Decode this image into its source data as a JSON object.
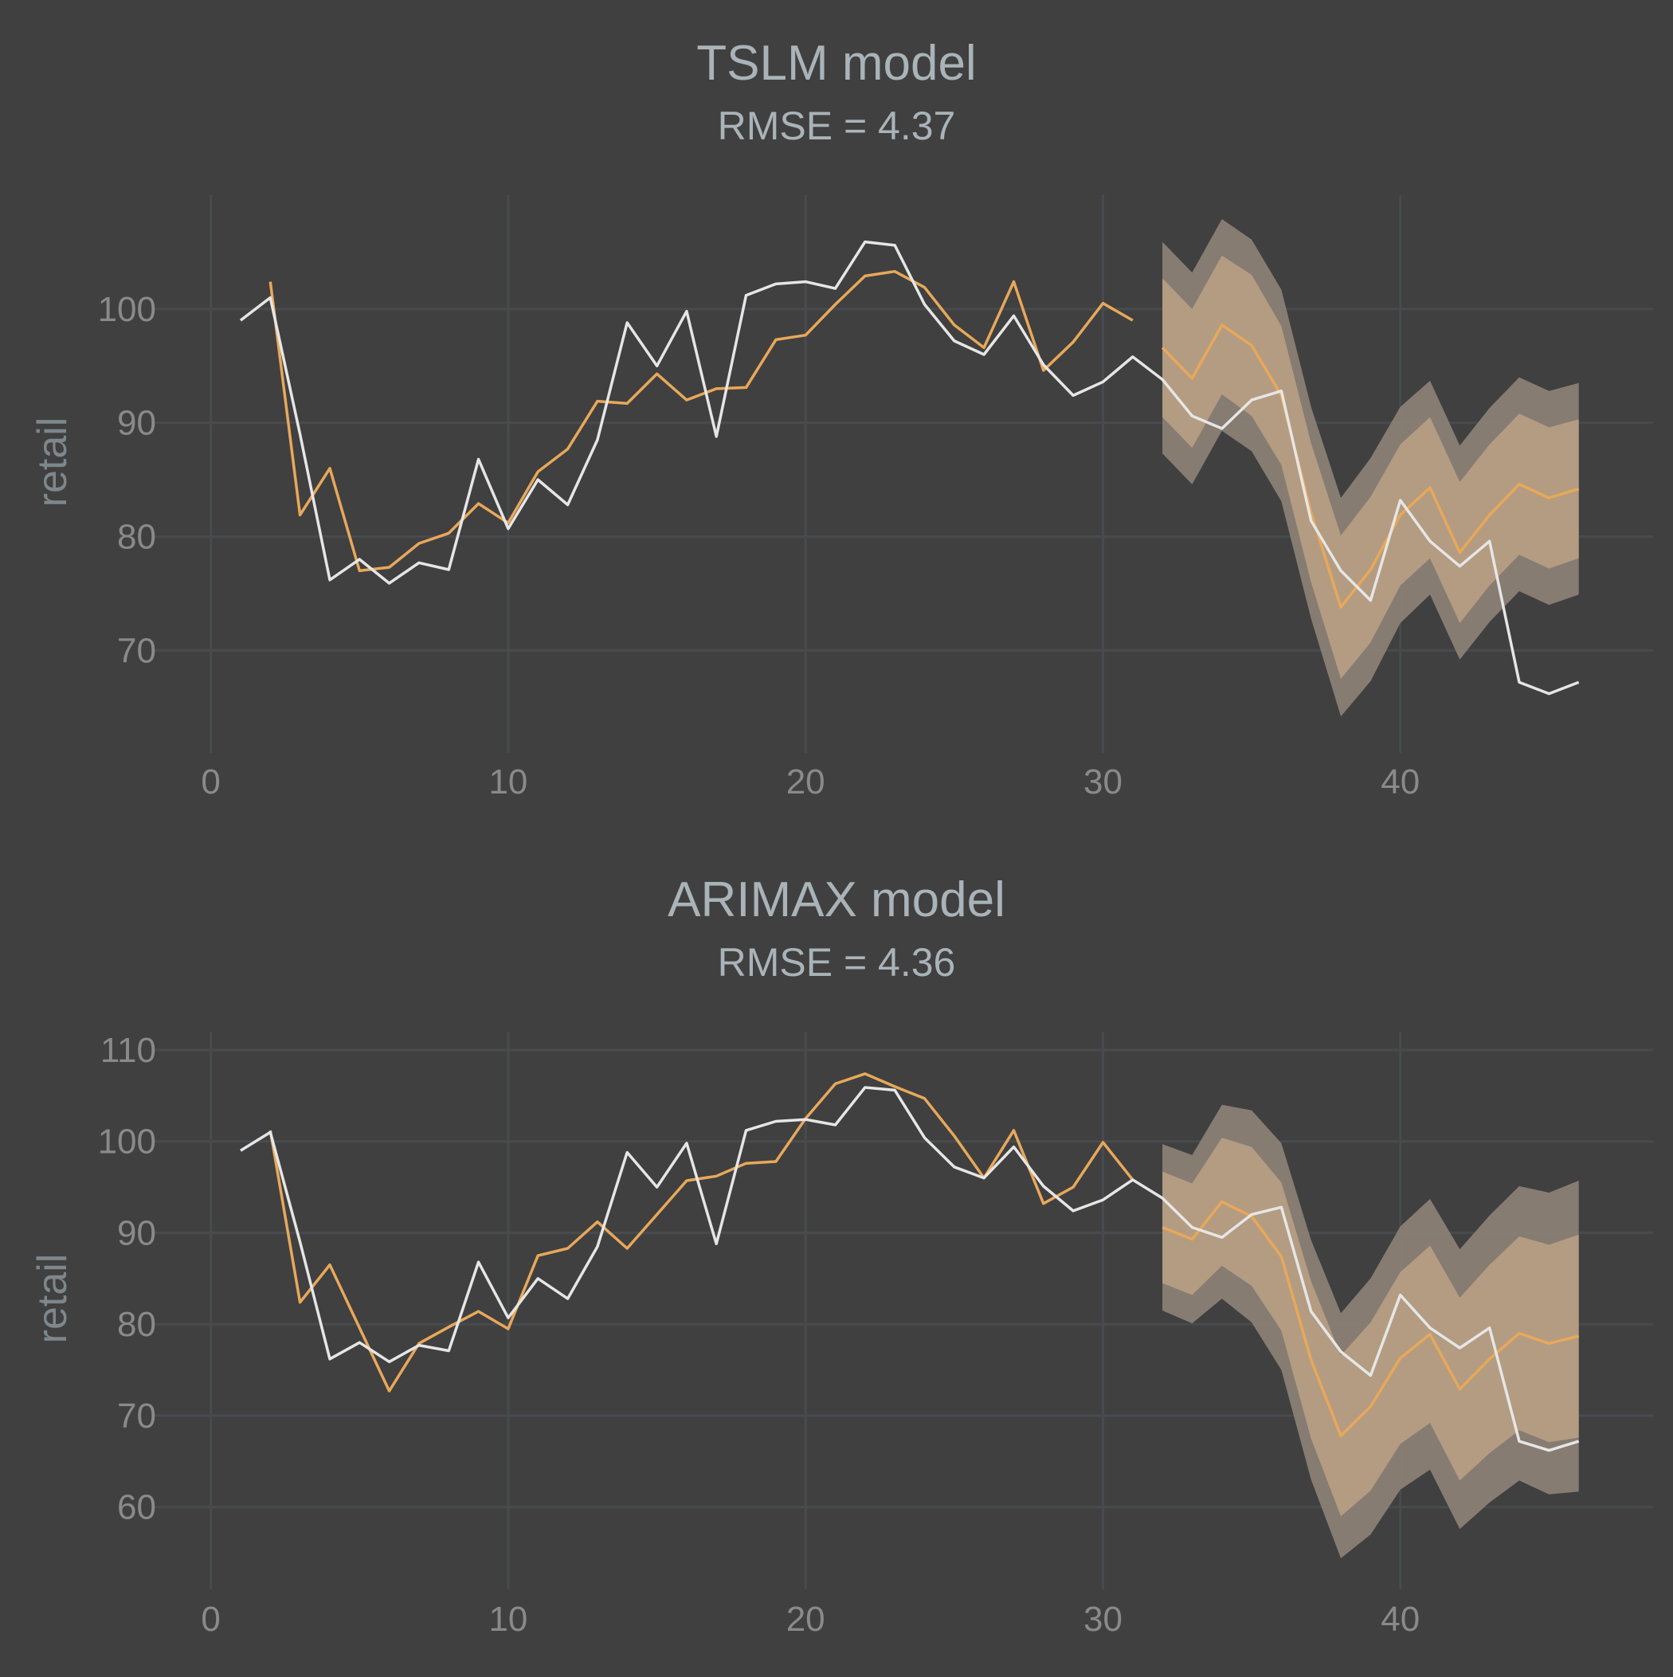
{
  "colors": {
    "background": "#404040",
    "fitted": "#e8a85a",
    "actual": "#e6e6e6",
    "band80": "#b8a084",
    "band95": "#8a8075"
  },
  "chart_data": [
    {
      "type": "line",
      "title": "TSLM model",
      "subtitle": "RMSE = 4.37",
      "xlabel": "",
      "ylabel": "retail",
      "xlim": [
        -2,
        48.5
      ],
      "ylim": [
        61,
        110
      ],
      "xticks": [
        0,
        10,
        20,
        30,
        40
      ],
      "yticks": [
        70,
        80,
        90,
        100
      ],
      "grid": true,
      "legend": "none",
      "series": [
        {
          "kind": "actual",
          "x": [
            1,
            2,
            3,
            4,
            5,
            6,
            7,
            8,
            9,
            10,
            11,
            12,
            13,
            14,
            15,
            16,
            17,
            18,
            19,
            20,
            21,
            22,
            23,
            24,
            25,
            26,
            27,
            28,
            29,
            30,
            31,
            32,
            33,
            34,
            35,
            36,
            37,
            38,
            39,
            40,
            41,
            42,
            43,
            44,
            45,
            46
          ],
          "y": [
            99.0,
            101.0,
            89.0,
            76.2,
            78.0,
            75.9,
            77.7,
            77.1,
            86.8,
            80.7,
            85.0,
            82.8,
            88.5,
            98.8,
            95.0,
            99.8,
            88.8,
            101.2,
            102.2,
            102.4,
            101.8,
            105.9,
            105.6,
            100.4,
            97.2,
            96.0,
            99.4,
            95.1,
            92.4,
            93.6,
            95.8,
            93.8,
            90.6,
            89.5,
            92.0,
            92.8,
            81.4,
            77.0,
            74.4,
            83.2,
            79.6,
            77.4,
            79.6,
            67.2,
            66.2,
            67.2
          ]
        },
        {
          "kind": "fitted",
          "x": [
            2,
            3,
            4,
            5,
            6,
            7,
            8,
            9,
            10,
            11,
            12,
            13,
            14,
            15,
            16,
            17,
            18,
            19,
            20,
            21,
            22,
            23,
            24,
            25,
            26,
            27,
            28,
            29,
            30,
            31
          ],
          "y": [
            102.4,
            81.9,
            86.0,
            77.0,
            77.3,
            79.4,
            80.3,
            82.9,
            81.2,
            85.7,
            87.7,
            91.9,
            91.7,
            94.3,
            92.0,
            93.0,
            93.1,
            97.3,
            97.7,
            100.4,
            102.9,
            103.3,
            101.9,
            98.6,
            96.6,
            102.4,
            94.6,
            97.1,
            100.5,
            99.0
          ]
        },
        {
          "kind": "forecast",
          "x": [
            32,
            33,
            34,
            35,
            36,
            37,
            38,
            39,
            40,
            41,
            42,
            43,
            44,
            45,
            46
          ],
          "y": [
            96.6,
            93.9,
            98.6,
            96.8,
            92.4,
            82.1,
            73.8,
            77.1,
            81.9,
            84.3,
            78.6,
            81.9,
            84.6,
            83.4,
            84.2
          ],
          "lo80": [
            90.5,
            87.8,
            92.5,
            90.6,
            86.3,
            76.0,
            67.5,
            70.7,
            75.7,
            78.1,
            72.4,
            75.7,
            78.4,
            77.2,
            78.1
          ],
          "hi80": [
            102.7,
            100.0,
            104.7,
            103.0,
            98.5,
            88.2,
            80.1,
            83.5,
            88.1,
            90.5,
            84.8,
            88.1,
            90.8,
            89.6,
            90.3
          ],
          "lo95": [
            87.3,
            84.6,
            89.3,
            87.5,
            83.1,
            72.8,
            64.2,
            67.3,
            72.4,
            74.9,
            69.2,
            72.5,
            75.2,
            74.0,
            74.9
          ],
          "hi95": [
            105.9,
            103.2,
            107.9,
            106.1,
            101.7,
            91.4,
            83.4,
            86.9,
            91.4,
            93.7,
            88.0,
            91.3,
            94.0,
            92.8,
            93.5
          ]
        }
      ]
    },
    {
      "type": "line",
      "title": "ARIMAX model",
      "subtitle": "RMSE = 4.36",
      "xlabel": "",
      "ylabel": "retail",
      "xlim": [
        -2,
        48.5
      ],
      "ylim": [
        51,
        112
      ],
      "xticks": [
        0,
        10,
        20,
        30,
        40
      ],
      "yticks": [
        60,
        70,
        80,
        90,
        100,
        110
      ],
      "grid": true,
      "legend": "none",
      "series": [
        {
          "kind": "actual",
          "x": [
            1,
            2,
            3,
            4,
            5,
            6,
            7,
            8,
            9,
            10,
            11,
            12,
            13,
            14,
            15,
            16,
            17,
            18,
            19,
            20,
            21,
            22,
            23,
            24,
            25,
            26,
            27,
            28,
            29,
            30,
            31,
            32,
            33,
            34,
            35,
            36,
            37,
            38,
            39,
            40,
            41,
            42,
            43,
            44,
            45,
            46
          ],
          "y": [
            99.0,
            101.0,
            89.0,
            76.2,
            78.0,
            75.9,
            77.7,
            77.1,
            86.8,
            80.7,
            85.0,
            82.8,
            88.5,
            98.8,
            95.0,
            99.8,
            88.8,
            101.2,
            102.2,
            102.4,
            101.8,
            105.9,
            105.6,
            100.4,
            97.2,
            96.0,
            99.4,
            95.1,
            92.4,
            93.6,
            95.8,
            93.8,
            90.6,
            89.5,
            92.0,
            92.8,
            81.4,
            77.0,
            74.4,
            83.2,
            79.6,
            77.4,
            79.6,
            67.2,
            66.2,
            67.2
          ]
        },
        {
          "kind": "fitted",
          "x": [
            2,
            3,
            4,
            5,
            6,
            7,
            8,
            9,
            10,
            11,
            12,
            13,
            14,
            15,
            16,
            17,
            18,
            19,
            20,
            21,
            22,
            23,
            24,
            25,
            26,
            27,
            28,
            29,
            30,
            31
          ],
          "y": [
            101.2,
            82.4,
            86.5,
            79.6,
            72.7,
            77.9,
            79.7,
            81.4,
            79.5,
            87.5,
            88.3,
            91.2,
            88.3,
            92.0,
            95.7,
            96.2,
            97.6,
            97.8,
            102.5,
            106.3,
            107.4,
            106.0,
            104.7,
            100.6,
            96.0,
            101.2,
            93.2,
            95.0,
            99.9,
            95.8
          ]
        },
        {
          "kind": "forecast",
          "x": [
            32,
            33,
            34,
            35,
            36,
            37,
            38,
            39,
            40,
            41,
            42,
            43,
            44,
            45,
            46
          ],
          "y": [
            90.6,
            89.3,
            93.4,
            91.8,
            87.4,
            76.1,
            67.8,
            71.0,
            76.3,
            78.9,
            72.9,
            76.2,
            79.0,
            77.9,
            78.7
          ],
          "lo80": [
            84.5,
            83.2,
            86.4,
            84.2,
            79.3,
            67.5,
            59.0,
            61.8,
            66.9,
            69.2,
            62.9,
            65.9,
            68.4,
            67.1,
            67.6
          ],
          "hi80": [
            96.7,
            95.4,
            100.4,
            99.4,
            95.5,
            84.7,
            76.6,
            80.2,
            85.7,
            88.6,
            82.9,
            86.5,
            89.6,
            88.7,
            89.8
          ],
          "lo95": [
            81.5,
            80.1,
            82.8,
            80.2,
            75.0,
            63.0,
            54.4,
            57.0,
            61.9,
            64.1,
            57.6,
            60.5,
            62.9,
            61.4,
            61.7
          ],
          "hi95": [
            99.7,
            98.5,
            104.0,
            103.4,
            99.8,
            89.2,
            81.2,
            85.0,
            90.7,
            93.7,
            88.2,
            91.9,
            95.1,
            94.4,
            95.7
          ]
        }
      ]
    }
  ]
}
